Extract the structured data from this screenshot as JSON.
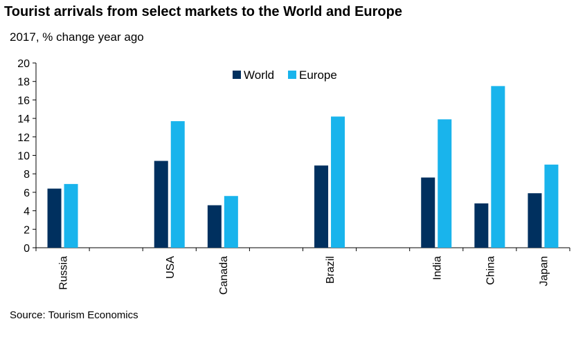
{
  "chart_data": {
    "type": "bar",
    "title": "Tourist arrivals from select markets to the World and Europe",
    "subtitle": "2017, % change year ago",
    "source": "Source: Tourism Economics",
    "categories": [
      "Russia",
      "",
      "USA",
      "Canada",
      "",
      "Brazil",
      "",
      "India",
      "China",
      "Japan"
    ],
    "series": [
      {
        "name": "World",
        "color": "#00305f",
        "values": [
          6.4,
          null,
          9.4,
          4.6,
          null,
          8.9,
          null,
          7.6,
          4.8,
          5.9
        ]
      },
      {
        "name": "Europe",
        "color": "#19b4ec",
        "values": [
          6.9,
          null,
          13.7,
          5.6,
          null,
          14.2,
          null,
          13.9,
          17.5,
          9.0
        ]
      }
    ],
    "ylim": [
      0,
      20
    ],
    "yticks": [
      "0",
      "2",
      "4",
      "6",
      "8",
      "10",
      "12",
      "14",
      "16",
      "18",
      "20"
    ],
    "legend_position": "top-center",
    "xlabel": "",
    "ylabel": ""
  }
}
